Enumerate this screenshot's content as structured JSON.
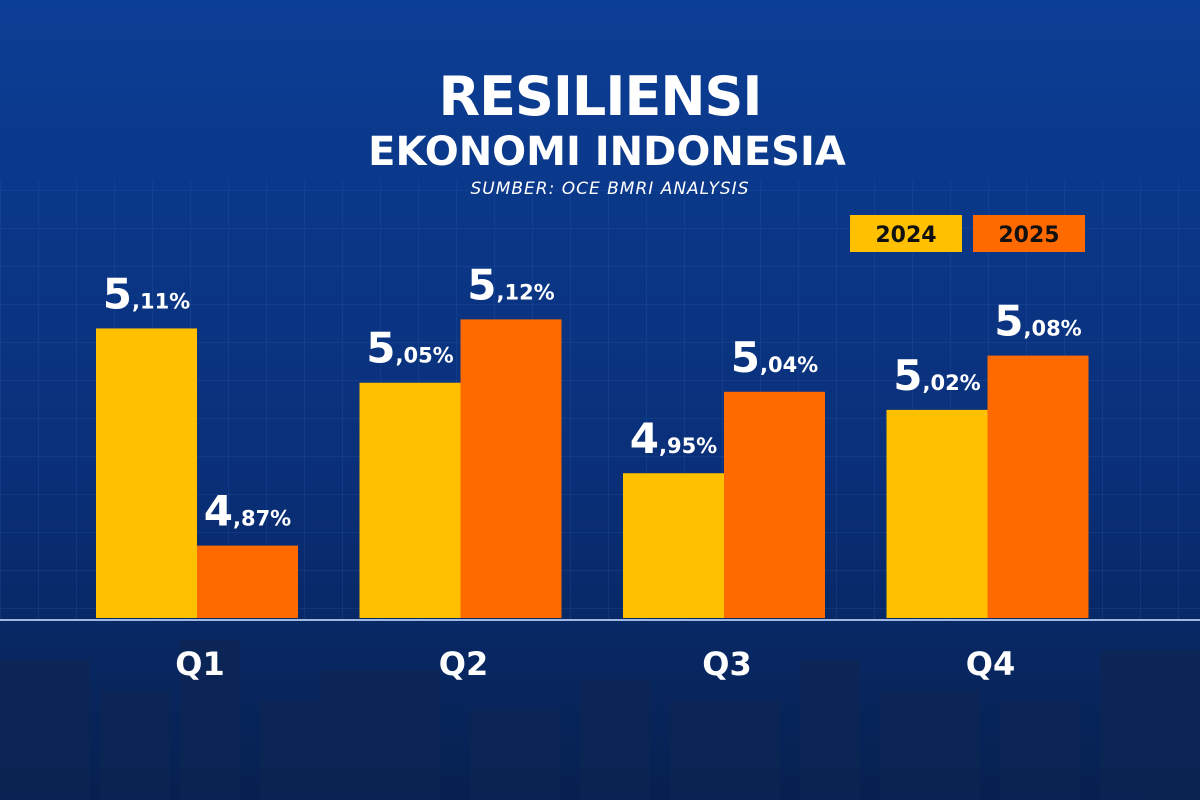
{
  "chart_data": {
    "type": "bar",
    "title": "RESILIENSI",
    "subtitle": "EKONOMI INDONESIA",
    "source": "SUMBER: OCE BMRI ANALYSIS",
    "categories": [
      "Q1",
      "Q2",
      "Q3",
      "Q4"
    ],
    "series": [
      {
        "name": "2024",
        "color": "#FFC000",
        "values": [
          5.11,
          5.05,
          4.95,
          5.02
        ],
        "value_labels": [
          "5,11%",
          "5,05%",
          "4,95%",
          "5,02%"
        ]
      },
      {
        "name": "2025",
        "color": "#FF6A00",
        "values": [
          4.87,
          5.12,
          5.04,
          5.08
        ],
        "value_labels": [
          "4,87%",
          "5,12%",
          "5,04%",
          "5,08%"
        ]
      }
    ],
    "ylim": [
      4.79,
      5.2
    ],
    "legend": "upper right"
  }
}
